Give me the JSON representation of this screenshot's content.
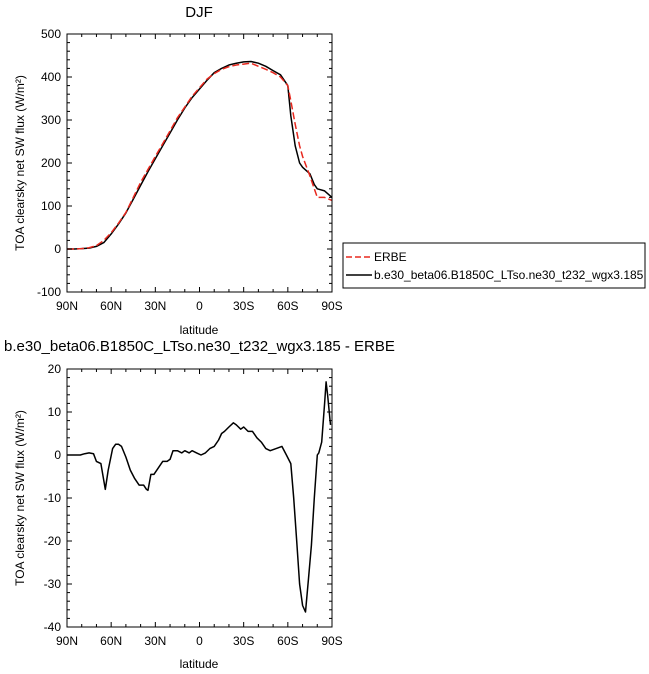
{
  "chart_data": [
    {
      "type": "line",
      "title": "DJF",
      "xlabel": "latitude",
      "ylabel": "TOA clearsky net SW flux (W/m²)",
      "xlim": [
        -90,
        90
      ],
      "ylim": [
        -100,
        500
      ],
      "xticks": [
        -90,
        -60,
        -30,
        0,
        30,
        60,
        90
      ],
      "xtick_labels": [
        "90N",
        "60N",
        "30N",
        "0",
        "30S",
        "60S",
        "90S"
      ],
      "yticks": [
        -100,
        0,
        100,
        200,
        300,
        400,
        500
      ],
      "ytick_labels": [
        "-100",
        "0",
        "100",
        "200",
        "300",
        "400",
        "500"
      ],
      "legend": {
        "position": "right"
      },
      "series": [
        {
          "name": "ERBE",
          "color": "#e8281e",
          "dash": "dashed",
          "x": [
            -90,
            -85,
            -80,
            -75,
            -70,
            -65,
            -60,
            -55,
            -50,
            -45,
            -40,
            -35,
            -30,
            -25,
            -20,
            -15,
            -10,
            -5,
            0,
            5,
            10,
            15,
            20,
            25,
            30,
            35,
            40,
            45,
            50,
            55,
            60,
            62,
            65,
            68,
            70,
            75,
            78,
            80,
            85,
            90
          ],
          "y": [
            0,
            0,
            1,
            3,
            8,
            20,
            38,
            60,
            85,
            120,
            155,
            185,
            215,
            245,
            275,
            305,
            330,
            355,
            375,
            395,
            408,
            418,
            424,
            428,
            430,
            432,
            425,
            418,
            410,
            400,
            380,
            345,
            290,
            240,
            215,
            170,
            140,
            120,
            120,
            113
          ]
        },
        {
          "name": "b.e30_beta06.B1850C_LTso.ne30_t232_wgx3.185",
          "color": "#000000",
          "dash": "solid",
          "x": [
            -90,
            -85,
            -80,
            -75,
            -70,
            -65,
            -60,
            -55,
            -50,
            -45,
            -40,
            -35,
            -30,
            -25,
            -20,
            -15,
            -10,
            -5,
            0,
            5,
            10,
            15,
            20,
            25,
            30,
            35,
            40,
            45,
            50,
            55,
            60,
            62,
            65,
            68,
            70,
            75,
            78,
            80,
            85,
            90
          ],
          "y": [
            0,
            0,
            1,
            2,
            6,
            15,
            35,
            58,
            84,
            116,
            148,
            180,
            210,
            240,
            270,
            300,
            328,
            352,
            372,
            392,
            410,
            420,
            428,
            432,
            435,
            436,
            432,
            425,
            415,
            405,
            380,
            310,
            240,
            200,
            190,
            175,
            150,
            140,
            135,
            120
          ]
        }
      ]
    },
    {
      "type": "line",
      "title": "b.e30_beta06.B1850C_LTso.ne30_t232_wgx3.185 - ERBE",
      "xlabel": "latitude",
      "ylabel": "TOA clearsky net SW flux (W/m²)",
      "xlim": [
        -90,
        90
      ],
      "ylim": [
        -40,
        20
      ],
      "xticks": [
        -90,
        -60,
        -30,
        0,
        30,
        60,
        90
      ],
      "xtick_labels": [
        "90N",
        "60N",
        "30N",
        "0",
        "30S",
        "60S",
        "90S"
      ],
      "yticks": [
        -40,
        -30,
        -20,
        -10,
        0,
        10,
        20
      ],
      "ytick_labels": [
        "-40",
        "-30",
        "-20",
        "-10",
        "0",
        "10",
        "20"
      ],
      "series": [
        {
          "color": "#000000",
          "dash": "solid",
          "x": [
            -90,
            -85,
            -81,
            -78,
            -75,
            -72,
            -70,
            -67,
            -64,
            -62,
            -59,
            -57,
            -55,
            -53,
            -50,
            -47,
            -44,
            -41,
            -38,
            -36,
            -35,
            -33,
            -31,
            -28,
            -25,
            -22,
            -20,
            -18,
            -15,
            -12,
            -10,
            -7,
            -5,
            -2,
            1,
            4,
            7,
            10,
            13,
            15,
            17,
            20,
            23,
            25,
            28,
            30,
            33,
            36,
            39,
            42,
            45,
            48,
            52,
            56,
            59,
            62,
            64,
            66,
            68,
            70,
            72,
            74,
            76,
            78,
            80,
            81,
            83,
            85,
            86,
            87,
            89
          ],
          "y": [
            0,
            0,
            0,
            0.3,
            0.5,
            0.3,
            -1.5,
            -2,
            -8,
            -3.5,
            1.5,
            2.5,
            2.5,
            2,
            -0.5,
            -3.5,
            -5.5,
            -7,
            -7,
            -8,
            -8.2,
            -4.5,
            -4.5,
            -3,
            -1.5,
            -1.5,
            -1,
            1,
            1,
            0.5,
            1,
            0.5,
            1,
            0.5,
            0,
            0.5,
            1.5,
            2,
            3.5,
            5,
            5.5,
            6.5,
            7.5,
            7,
            6,
            6.5,
            5.5,
            5.5,
            4,
            3,
            1.5,
            1,
            1.5,
            2,
            0,
            -2,
            -10,
            -20,
            -30,
            -35,
            -36.5,
            -29,
            -21,
            -10,
            0,
            0.5,
            3,
            12,
            17,
            14,
            7
          ]
        }
      ]
    }
  ],
  "legend_labels": {
    "erbe": "ERBE",
    "model": "b.e30_beta06.B1850C_LTso.ne30_t232_wgx3.185"
  }
}
